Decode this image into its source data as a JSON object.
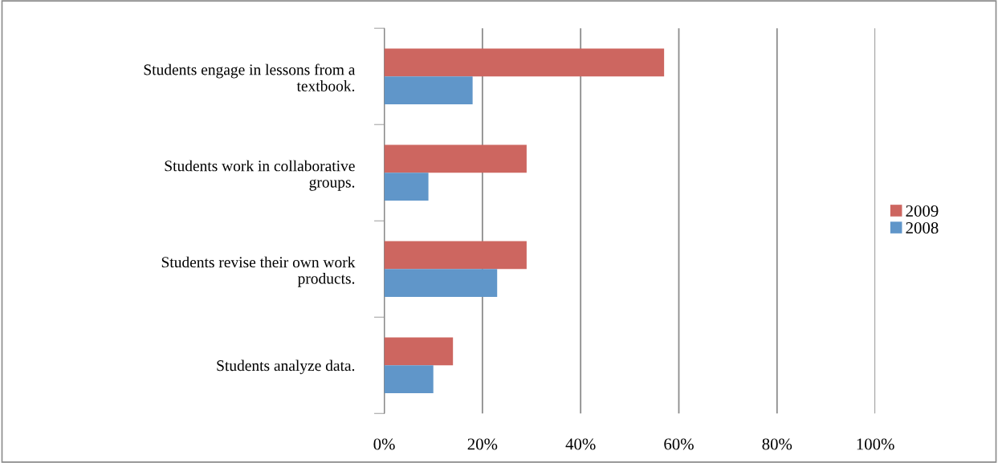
{
  "chart_data": {
    "type": "bar",
    "orientation": "horizontal",
    "categories": [
      "Students engage in lessons from a\ntextbook.",
      "Students work in collaborative\ngroups.",
      "Students revise their own work\nproducts.",
      "Students analyze data."
    ],
    "series": [
      {
        "name": "2009",
        "color": "#cd6660",
        "values": [
          57,
          29,
          29,
          14
        ]
      },
      {
        "name": "2008",
        "color": "#6096c9",
        "values": [
          18,
          9,
          23,
          10
        ]
      }
    ],
    "xlim": [
      0,
      100
    ],
    "xticks": [
      {
        "value": 0,
        "label": "0%"
      },
      {
        "value": 20,
        "label": "20%"
      },
      {
        "value": 40,
        "label": "40%"
      },
      {
        "value": 60,
        "label": "60%"
      },
      {
        "value": 80,
        "label": "80%"
      },
      {
        "value": 100,
        "label": "100%"
      }
    ],
    "grid": "x",
    "legend": "right"
  }
}
